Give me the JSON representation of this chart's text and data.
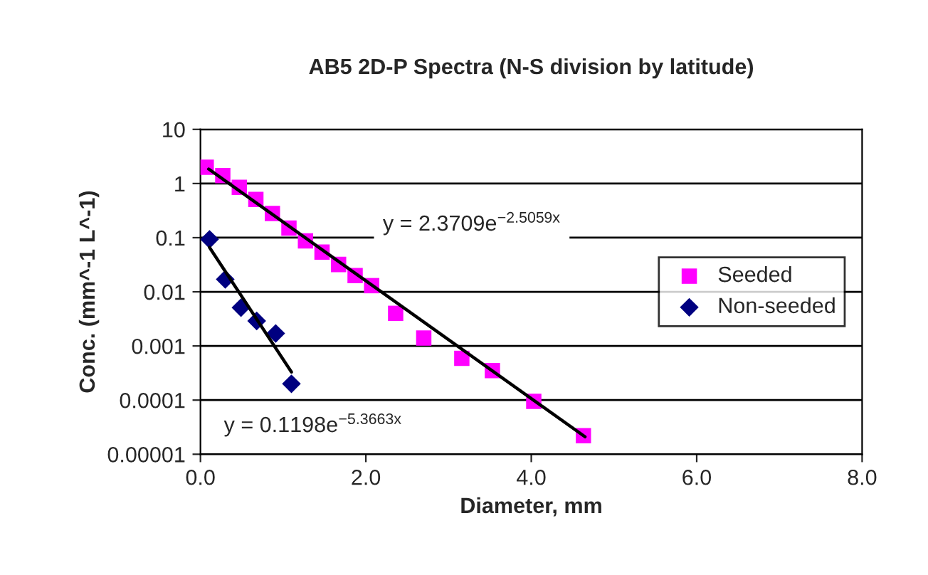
{
  "chart_data": {
    "type": "scatter",
    "title": "AB5 2D-P Spectra (N-S division by latitude)",
    "xlabel": "Diameter, mm",
    "ylabel": "Conc. (mm^-1 L^-1)",
    "series": [
      {
        "name": "Seeded",
        "color": "#ff00ff",
        "marker": "square",
        "x": [
          0.07,
          0.27,
          0.47,
          0.67,
          0.87,
          1.07,
          1.27,
          1.47,
          1.67,
          1.87,
          2.07,
          2.36,
          2.7,
          3.16,
          3.53,
          4.03,
          4.63
        ],
        "values": [
          2.0,
          1.4,
          0.85,
          0.51,
          0.28,
          0.15,
          0.087,
          0.054,
          0.032,
          0.02,
          0.013,
          0.004,
          0.0014,
          0.00059,
          0.00035,
          9.5e-05,
          2.2e-05
        ]
      },
      {
        "name": "Non-seeded",
        "color": "#000080",
        "marker": "diamond",
        "x": [
          0.11,
          0.3,
          0.49,
          0.68,
          0.91,
          1.1
        ],
        "values": [
          0.093,
          0.017,
          0.0051,
          0.0029,
          0.0017,
          0.0002
        ]
      },
      {
        "type": "line",
        "color": "#000000",
        "marker": "none",
        "x": [
          0.1,
          4.65
        ],
        "values": [
          1.85,
          2.1e-05
        ]
      },
      {
        "type": "line",
        "color": "#000000",
        "marker": "none",
        "x": [
          0.11,
          1.1
        ],
        "values": [
          0.066,
          0.00033
        ]
      }
    ],
    "annotations": [
      "y = 2.3709e$^{−2.5059x}$",
      "y = 0.1198e$^{−5.3663x}$"
    ],
    "log": "y",
    "xlim": [
      0,
      8
    ],
    "xticks": [
      {
        "value": 0,
        "label": "0.0"
      },
      {
        "value": 2,
        "label": "2.0"
      },
      {
        "value": 4,
        "label": "4.0"
      },
      {
        "value": 6,
        "label": "6.0"
      },
      {
        "value": 8,
        "label": "8.0"
      }
    ],
    "ylim": [
      1e-05,
      10
    ],
    "yticks": [
      {
        "value": 1e-05,
        "label": "0.00001"
      },
      {
        "value": 0.0001,
        "label": "0.0001"
      },
      {
        "value": 0.001,
        "label": "0.001"
      },
      {
        "value": 0.01,
        "label": "0.01"
      },
      {
        "value": 0.1,
        "label": "0.1"
      },
      {
        "value": 1,
        "label": "1"
      },
      {
        "value": 10,
        "label": "10"
      }
    ],
    "grid": "y",
    "legend": "center right"
  }
}
